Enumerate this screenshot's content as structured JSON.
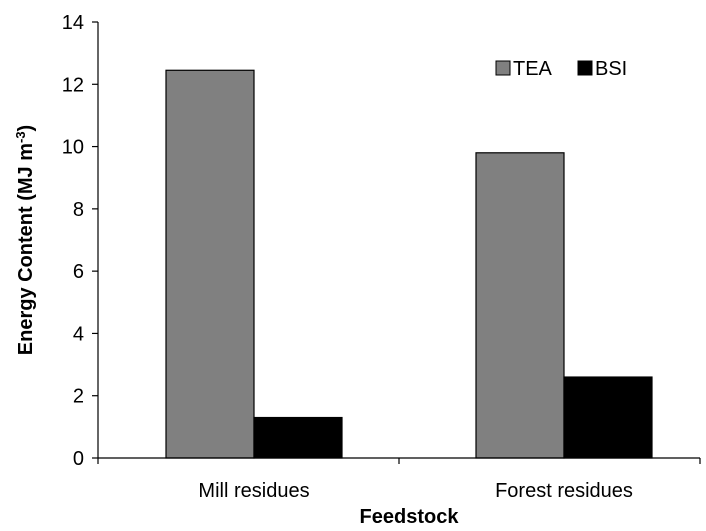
{
  "chart_data": {
    "type": "bar",
    "categories": [
      "Mill residues",
      "Forest residues"
    ],
    "series": [
      {
        "name": "TEA",
        "values": [
          12.45,
          9.8
        ],
        "color": "#808080"
      },
      {
        "name": "BSI",
        "values": [
          1.3,
          2.6
        ],
        "color": "#000000"
      }
    ],
    "xlabel": "Feedstock",
    "ylabel": {
      "main": "Energy Content (MJ m",
      "superscript": "-3",
      "close": ")"
    },
    "ylim": [
      0,
      14
    ],
    "yticks": [
      "0",
      "2",
      "4",
      "6",
      "8",
      "10",
      "12",
      "14"
    ],
    "grid": false,
    "legend_position": "top-right"
  }
}
